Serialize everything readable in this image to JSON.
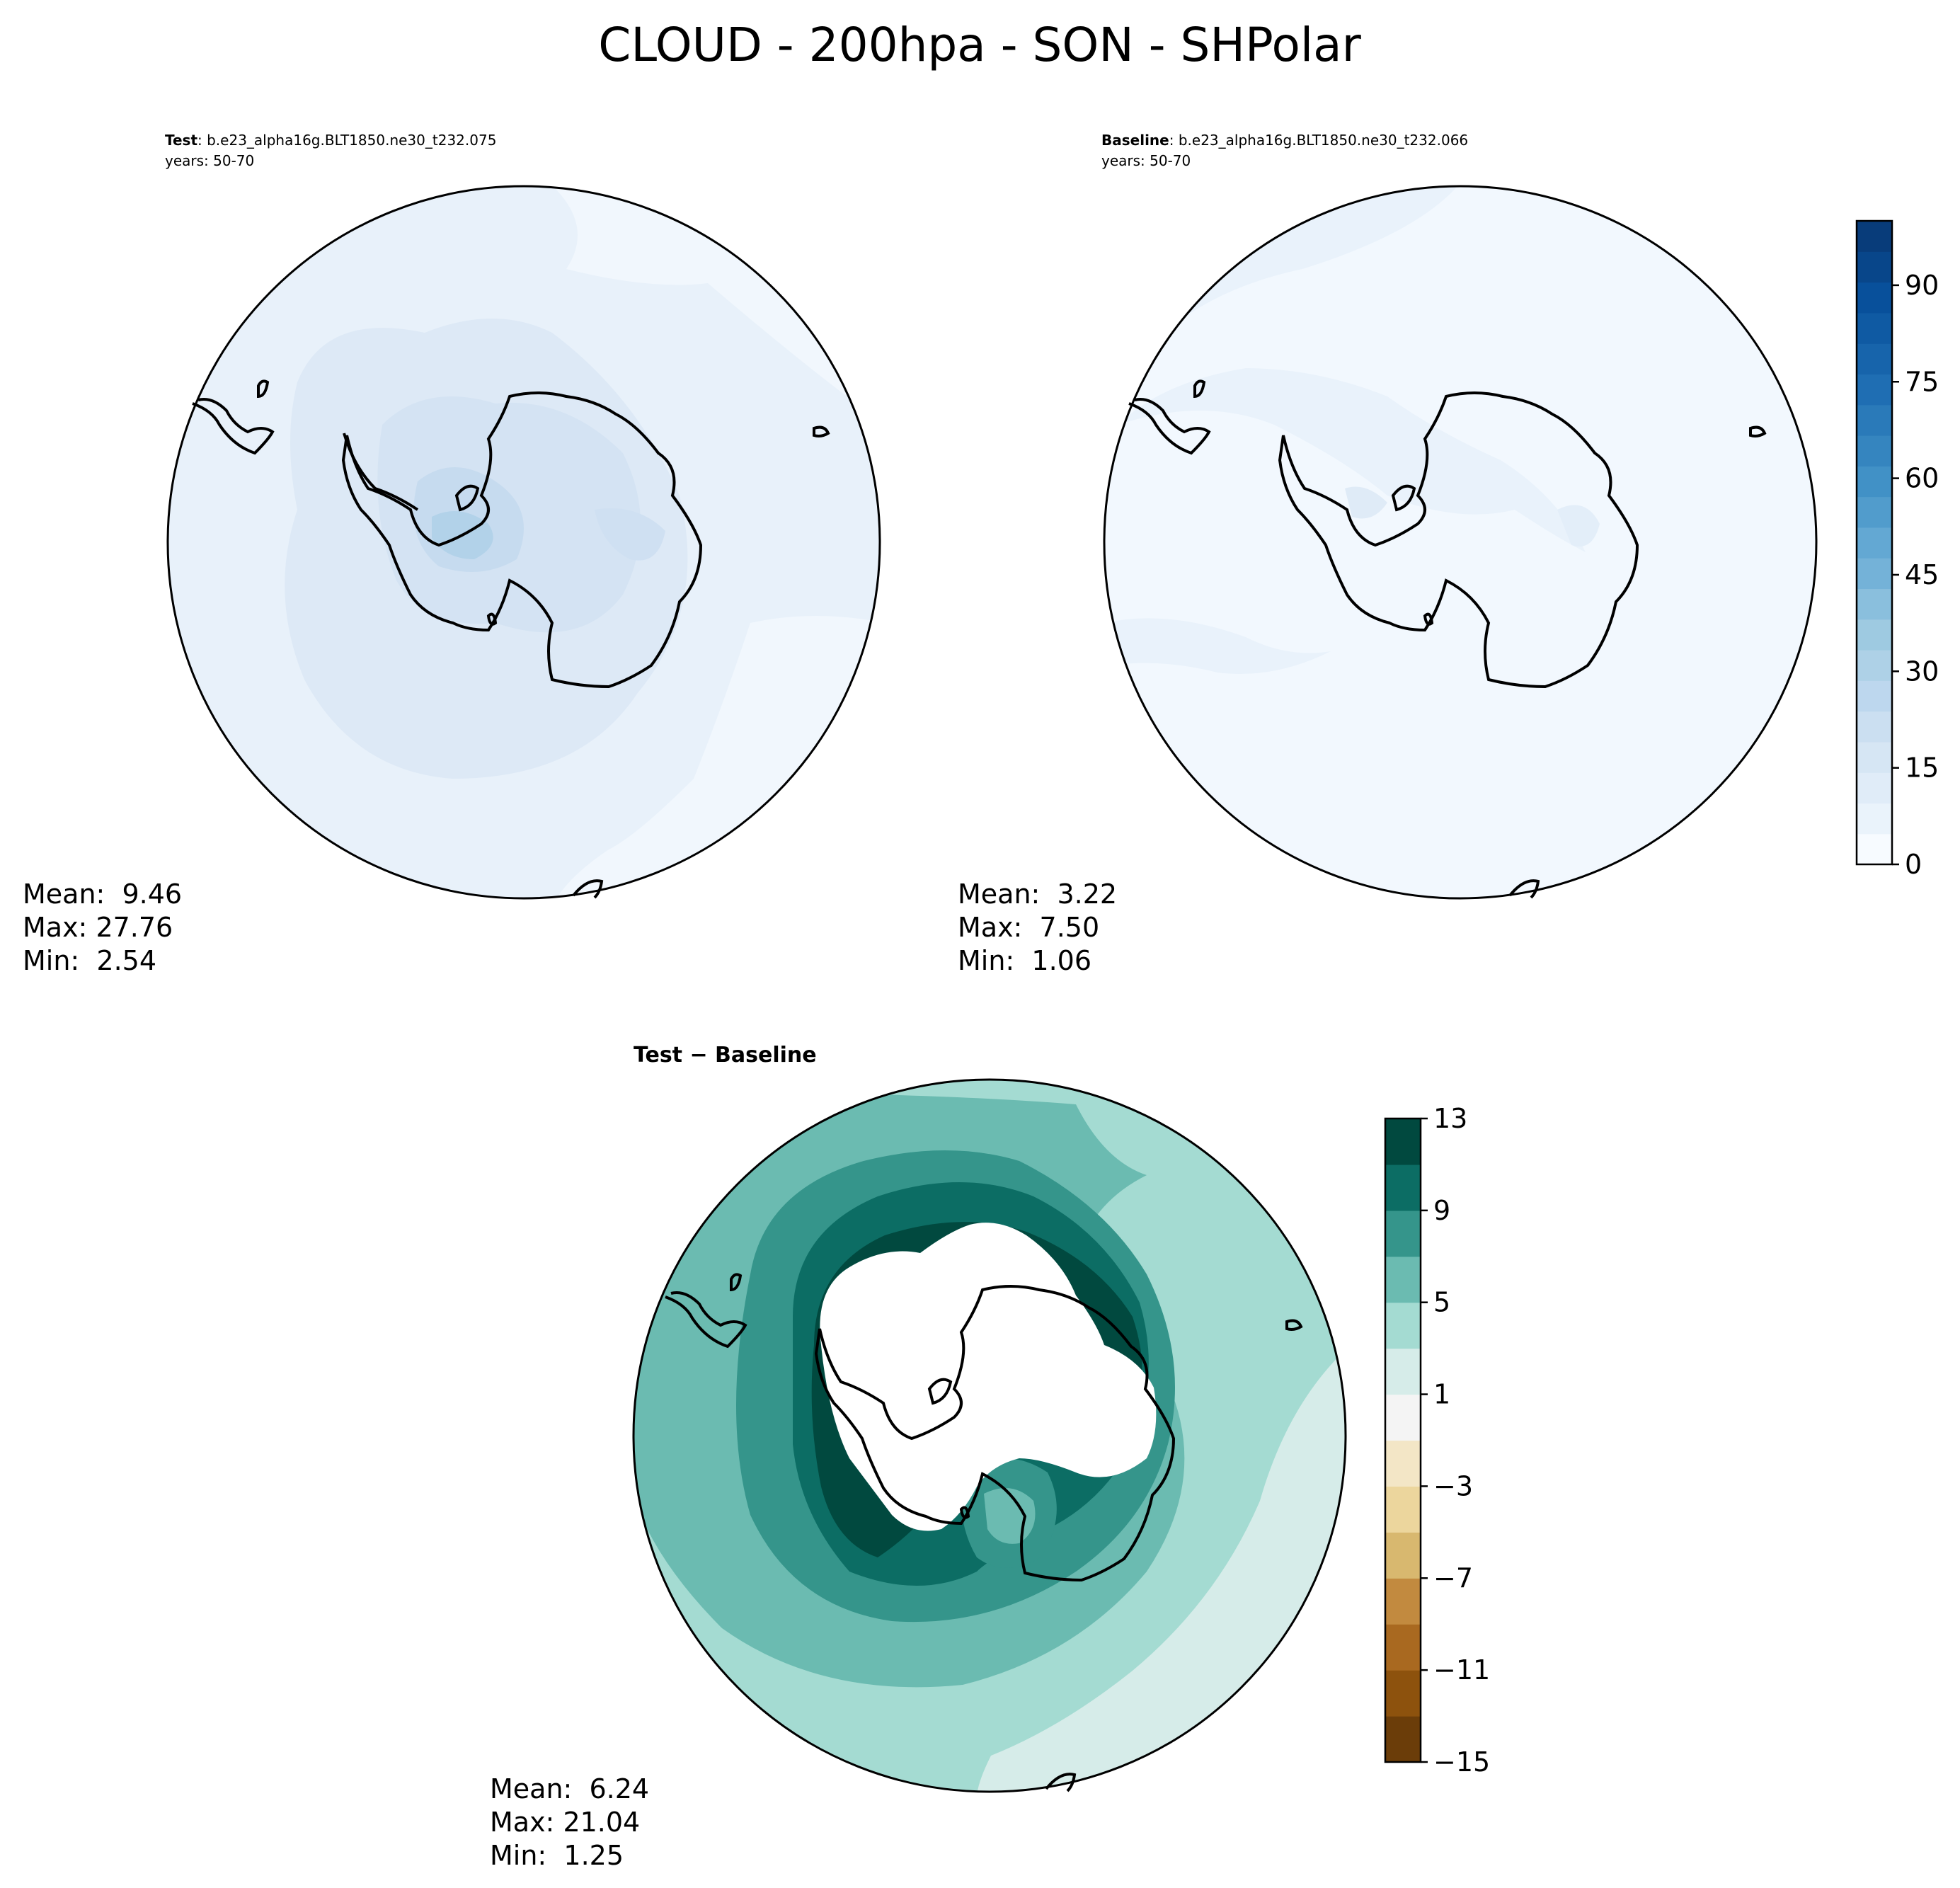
{
  "title": "CLOUD - 200hpa - SON - SHPolar",
  "panels": [
    {
      "id": "test",
      "label_bold": "Test",
      "label_rest": ": b.e23_alpha16g.BLT1850.ne30_t232.075",
      "years": "years: 50-70",
      "stats": {
        "mean": "Mean:  9.46",
        "max": "Max: 27.76",
        "min": "Min:  2.54"
      }
    },
    {
      "id": "baseline",
      "label_bold": "Baseline",
      "label_rest": ": b.e23_alpha16g.BLT1850.ne30_t232.066",
      "years": "years: 50-70",
      "stats": {
        "mean": "Mean:  3.22",
        "max": "Max:  7.50",
        "min": "Min:  1.06"
      }
    },
    {
      "id": "diff",
      "label_bold": "Test − Baseline",
      "stats": {
        "mean": "Mean:  6.24",
        "max": "Max: 21.04",
        "min": "Min:  1.25"
      }
    }
  ],
  "chart_data": [
    {
      "type": "heatmap",
      "projection": "south-polar-stereographic",
      "panel": "test",
      "mean": 9.46,
      "max": 27.76,
      "min": 2.54,
      "colormap": "Blues",
      "vrange": [
        0,
        100
      ]
    },
    {
      "type": "heatmap",
      "projection": "south-polar-stereographic",
      "panel": "baseline",
      "mean": 3.22,
      "max": 7.5,
      "min": 1.06,
      "colormap": "Blues",
      "vrange": [
        0,
        100
      ]
    },
    {
      "type": "heatmap",
      "projection": "south-polar-stereographic",
      "panel": "diff",
      "mean": 6.24,
      "max": 21.04,
      "min": 1.25,
      "colormap": "BrBG",
      "vrange": [
        -15,
        13
      ]
    }
  ],
  "colorbars": {
    "main": {
      "ticks": [
        "0",
        "15",
        "30",
        "45",
        "60",
        "75",
        "90"
      ],
      "tick_values": [
        0,
        15,
        30,
        45,
        60,
        75,
        90
      ],
      "range": [
        0,
        100
      ],
      "colors": [
        "#f7fbff",
        "#eaf3fb",
        "#e0ecf8",
        "#d6e6f4",
        "#cbdff1",
        "#bdd7ee",
        "#aed1e7",
        "#9ecae1",
        "#8abfdd",
        "#74b2d8",
        "#63a8d3",
        "#519ccc",
        "#4191c6",
        "#3585bf",
        "#2a7ab9",
        "#1f6eb3",
        "#1764ab",
        "#0f5aa3",
        "#08509b",
        "#08468a",
        "#083c7a"
      ]
    },
    "diff": {
      "ticks": [
        "13",
        "9",
        "5",
        "1",
        "−3",
        "−7",
        "−11",
        "−15"
      ],
      "tick_values": [
        13,
        9,
        5,
        1,
        -3,
        -7,
        -11,
        -15
      ],
      "range": [
        -15,
        13
      ],
      "colors": [
        "#6b3d09",
        "#8d520d",
        "#a96920",
        "#c28a3f",
        "#d8b86f",
        "#ecd69d",
        "#f3e6c6",
        "#f4f4f4",
        "#d6ece9",
        "#a4dbd2",
        "#6bbbb1",
        "#35958b",
        "#0c6d64",
        "#01493f"
      ]
    }
  },
  "colors": {
    "ocean_line": "#000000",
    "diff_land": "#ffffff"
  }
}
